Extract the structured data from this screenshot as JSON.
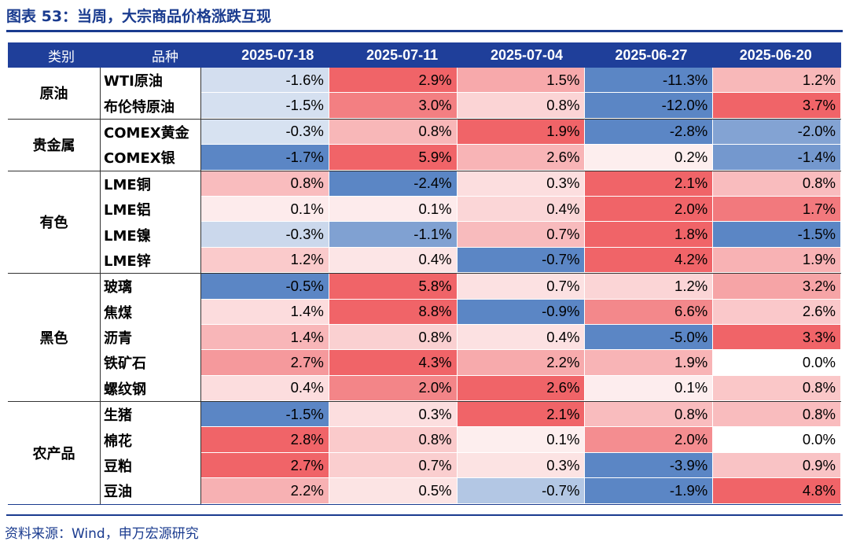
{
  "title": "图表 53：当周，大宗商品价格涨跌互现",
  "source": "资料来源：Wind，申万宏源研究",
  "chart_data": {
    "type": "table",
    "headers": {
      "category": "类别",
      "variety": "品种",
      "dates": [
        "2025-07-18",
        "2025-07-11",
        "2025-07-04",
        "2025-06-27",
        "2025-06-20"
      ]
    },
    "color_scale": {
      "negative": "#5b86c5",
      "neutral": "#ffffff",
      "positive": "#f06468"
    },
    "groups": [
      {
        "category": "原油",
        "rows": [
          {
            "name": "WTI原油",
            "values": [
              "-1.6%",
              "2.9%",
              "1.5%",
              "-11.3%",
              "1.2%"
            ]
          },
          {
            "name": "布伦特原油",
            "values": [
              "-1.5%",
              "3.0%",
              "0.8%",
              "-12.0%",
              "3.7%"
            ]
          }
        ]
      },
      {
        "category": "贵金属",
        "rows": [
          {
            "name": "COMEX黄金",
            "values": [
              "-0.3%",
              "0.8%",
              "1.9%",
              "-2.8%",
              "-2.0%"
            ]
          },
          {
            "name": "COMEX银",
            "values": [
              "-1.7%",
              "5.9%",
              "2.6%",
              "0.2%",
              "-1.4%"
            ]
          }
        ]
      },
      {
        "category": "有色",
        "rows": [
          {
            "name": "LME铜",
            "values": [
              "0.8%",
              "-2.4%",
              "0.3%",
              "2.1%",
              "0.8%"
            ]
          },
          {
            "name": "LME铝",
            "values": [
              "0.1%",
              "0.1%",
              "0.4%",
              "2.0%",
              "1.7%"
            ]
          },
          {
            "name": "LME镍",
            "values": [
              "-0.3%",
              "-1.1%",
              "0.7%",
              "1.8%",
              "-1.5%"
            ]
          },
          {
            "name": "LME锌",
            "values": [
              "1.2%",
              "0.4%",
              "-0.7%",
              "4.2%",
              "1.9%"
            ]
          }
        ]
      },
      {
        "category": "黑色",
        "rows": [
          {
            "name": "玻璃",
            "values": [
              "-0.5%",
              "5.8%",
              "0.7%",
              "1.2%",
              "3.2%"
            ]
          },
          {
            "name": "焦煤",
            "values": [
              "1.4%",
              "8.8%",
              "-0.9%",
              "6.6%",
              "2.6%"
            ]
          },
          {
            "name": "沥青",
            "values": [
              "1.4%",
              "0.8%",
              "0.4%",
              "-5.0%",
              "3.3%"
            ]
          },
          {
            "name": "铁矿石",
            "values": [
              "2.7%",
              "4.3%",
              "2.2%",
              "1.9%",
              "0.0%"
            ]
          },
          {
            "name": "螺纹钢",
            "values": [
              "0.4%",
              "2.0%",
              "2.6%",
              "0.1%",
              "0.8%"
            ]
          }
        ]
      },
      {
        "category": "农产品",
        "rows": [
          {
            "name": "生猪",
            "values": [
              "-1.5%",
              "0.3%",
              "2.1%",
              "0.8%",
              "0.8%"
            ]
          },
          {
            "name": "棉花",
            "values": [
              "2.8%",
              "0.8%",
              "0.1%",
              "2.0%",
              "0.0%"
            ]
          },
          {
            "name": "豆粕",
            "values": [
              "2.7%",
              "0.7%",
              "0.3%",
              "-3.9%",
              "0.9%"
            ]
          },
          {
            "name": "豆油",
            "values": [
              "2.2%",
              "0.5%",
              "-0.7%",
              "-1.9%",
              "4.8%"
            ]
          }
        ]
      }
    ]
  }
}
